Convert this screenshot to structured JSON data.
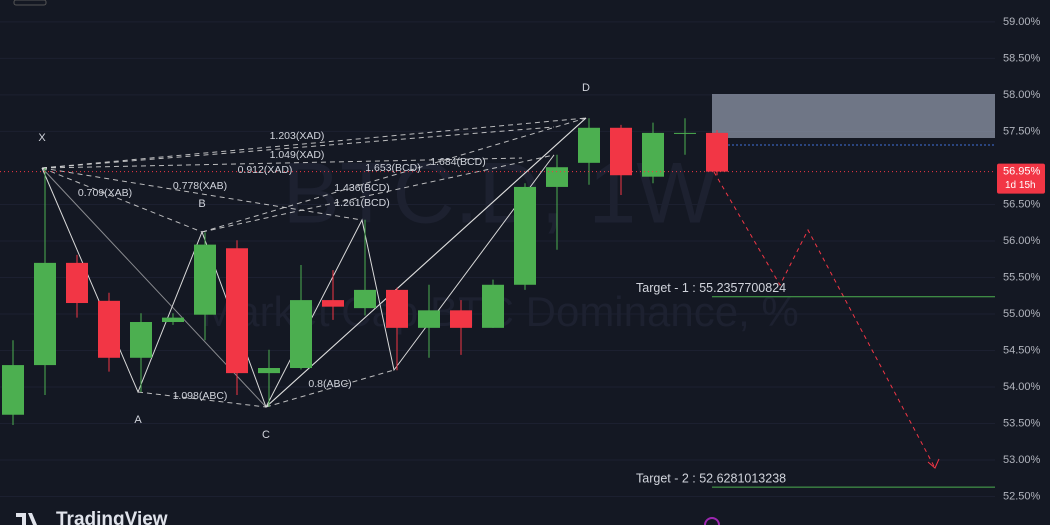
{
  "chart_data": {
    "type": "candlestick",
    "watermark": "BTC.D, 1W",
    "watermark_subtitle": "Market Cap BTC Dominance, %",
    "brand": "TradingView",
    "open": [
      53.62,
      54.3,
      55.7,
      55.18,
      54.4,
      54.89,
      54.99,
      55.9,
      54.19,
      54.26,
      55.19,
      55.08,
      55.33,
      54.81,
      55.05,
      54.81,
      55.4,
      56.74,
      57.07,
      57.55,
      56.88,
      57.48,
      57.48
    ],
    "high": [
      54.64,
      57.0,
      55.81,
      55.29,
      55.01,
      55.01,
      56.12,
      56.01,
      54.51,
      55.67,
      55.6,
      56.29,
      55.36,
      55.4,
      55.19,
      55.47,
      56.79,
      57.18,
      57.68,
      57.59,
      57.62,
      57.68,
      57.52
    ],
    "low": [
      53.48,
      53.89,
      54.95,
      54.21,
      53.93,
      54.85,
      54.64,
      53.89,
      53.73,
      54.24,
      54.92,
      54.98,
      54.23,
      54.4,
      54.44,
      54.81,
      55.33,
      55.88,
      56.77,
      56.63,
      56.79,
      57.18,
      56.9
    ],
    "close": [
      54.3,
      55.7,
      55.15,
      54.4,
      54.89,
      54.95,
      55.95,
      54.19,
      54.26,
      55.19,
      55.1,
      55.33,
      54.81,
      55.05,
      54.81,
      55.4,
      56.74,
      57.01,
      57.55,
      56.9,
      57.48,
      57.48,
      56.95
    ],
    "up_color": "#4caf50",
    "down_color": "#f23645",
    "ylim": [
      52.11,
      59.3
    ],
    "yticks": [
      {
        "value": 59.0,
        "label": "59.00%"
      },
      {
        "value": 58.5,
        "label": "58.50%"
      },
      {
        "value": 58.0,
        "label": "58.00%"
      },
      {
        "value": 57.5,
        "label": "57.50%"
      },
      {
        "value": 56.5,
        "label": "56.50%"
      },
      {
        "value": 56.0,
        "label": "56.00%"
      },
      {
        "value": 55.5,
        "label": "55.50%"
      },
      {
        "value": 55.0,
        "label": "55.00%"
      },
      {
        "value": 54.5,
        "label": "54.50%"
      },
      {
        "value": 54.0,
        "label": "54.00%"
      },
      {
        "value": 53.5,
        "label": "53.50%"
      },
      {
        "value": 53.0,
        "label": "53.00%"
      },
      {
        "value": 52.5,
        "label": "52.50%"
      }
    ],
    "grid": true,
    "last_price": {
      "value": 56.95,
      "label": "56.95%"
    },
    "countdown": "1d 15h",
    "targets": [
      {
        "value": 55.2357700824,
        "label": "Target - 1 : 55.2357700824"
      },
      {
        "value": 52.6281013238,
        "label": "Target - 2 : 52.6281013238"
      }
    ],
    "pattern_points": [
      "X",
      "A",
      "B",
      "C",
      "D"
    ],
    "ratio_labels": [
      "1.203(XAD)",
      "1.049(XAD)",
      "0.912(XAD)",
      "0.778(XAB)",
      "0.709(XAB)",
      "1.684(BCD)",
      "1.653(BCD)",
      "1.436(BCD)",
      "1.261(BCD)",
      "1.098(ABC)",
      "0.8(ABC)"
    ]
  }
}
